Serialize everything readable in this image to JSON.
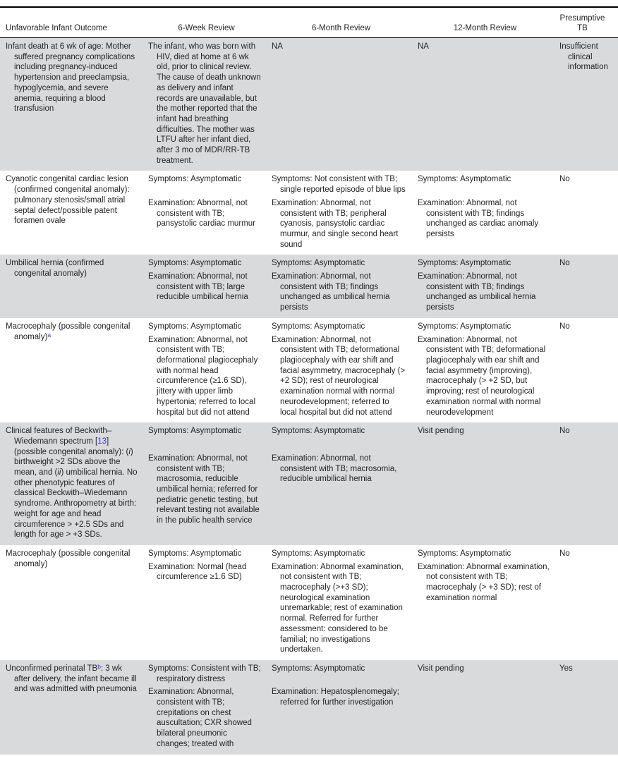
{
  "colors": {
    "row_shade": "#d9dadb",
    "link_blue": "#3a3ac8",
    "rule_black": "#000000"
  },
  "header": {
    "columns": [
      "Unfavorable Infant Outcome",
      "6-Week Review",
      "6-Month Review",
      "12-Month Review",
      "Presumptive TB"
    ]
  },
  "rows": [
    {
      "shaded": true,
      "outcome": [
        {
          "text": "Infant death at 6 wk of age: Mother suffered pregnancy complications including pregnancy-induced hypertension and preeclampsia, hypoglycemia, and severe anemia, requiring a blood transfusion"
        }
      ],
      "six_week": {
        "single": "The infant, who was born with HIV, died at home at 6 wk old, prior to clinical review. The cause of death unknown as delivery and infant records are unavailable, but the mother reported that the infant had breathing difficulties. The mother was LTFU after her infant died, after 3 mo of MDR/RR-TB treatment."
      },
      "six_month": {
        "single": "NA"
      },
      "twelve_month": {
        "single": "NA"
      },
      "presumptive": "Insufficient clinical information"
    },
    {
      "shaded": false,
      "outcome": [
        {
          "text": "Cyanotic congenital cardiac lesion (confirmed congenital anomaly): pulmonary stenosis/small atrial septal defect/possible patent foramen ovale"
        }
      ],
      "six_week": {
        "symptoms": "Symptoms: Asymptomatic",
        "examination": "Examination: Abnormal, not consistent with TB; pansystolic cardiac murmur"
      },
      "six_month": {
        "symptoms": "Symptoms: Not consistent with TB; single reported episode of blue lips",
        "examination": "Examination: Abnormal, not consistent with TB; peripheral cyanosis, pansystolic cardiac murmur, and single second heart sound"
      },
      "twelve_month": {
        "symptoms": "Symptoms: Asymptomatic",
        "examination": "Examination: Abnormal, not consistent with TB; findings unchanged as cardiac anomaly persists"
      },
      "presumptive": "No"
    },
    {
      "shaded": true,
      "outcome": [
        {
          "text": "Umbilical hernia (confirmed congenital anomaly)"
        }
      ],
      "six_week": {
        "symptoms": "Symptoms: Asymptomatic",
        "examination": "Examination: Abnormal, not consistent with TB; large reducible umbilical hernia"
      },
      "six_month": {
        "symptoms": "Symptoms: Asymptomatic",
        "examination": "Examination: Abnormal, not consistent with TB; findings unchanged as umbilical hernia persists"
      },
      "twelve_month": {
        "symptoms": "Symptoms: Asymptomatic",
        "examination": "Examination: Abnormal, not consistent with TB; findings unchanged as umbilical hernia persists"
      },
      "presumptive": "No"
    },
    {
      "shaded": false,
      "outcome": [
        {
          "text": "Macrocephaly (possible congenital anomaly)"
        },
        {
          "sup": "a"
        }
      ],
      "six_week": {
        "symptoms": "Symptoms: Asymptomatic",
        "examination": "Examination: Abnormal, not consistent with TB; deformational plagiocephaly with normal head circumference (≥1.6 SD), jittery with upper limb hypertonia; referred to local hospital but did not attend"
      },
      "six_month": {
        "symptoms": "Symptoms: Asymptomatic",
        "examination": "Examination: Abnormal, not consistent with TB; deformational plagiocephaly with ear shift and facial asymmetry, macrocephaly (> +2 SD); rest of neurological examination normal with normal neurodevelopment; referred to local hospital but did not attend"
      },
      "twelve_month": {
        "symptoms": "Symptoms: Asymptomatic",
        "examination": "Examination: Abnormal, not consistent with TB; deformational plagiocephaly with ear shift and facial asymmetry (improving), macrocephaly (> +2 SD, but improving; rest of neurological examination normal with normal neurodevelopment"
      },
      "presumptive": "No"
    },
    {
      "shaded": true,
      "outcome": [
        {
          "text": "Clinical features of Beckwith–Wiedemann spectrum ["
        },
        {
          "link": "13"
        },
        {
          "text": "] (possible congenital anomaly): ("
        },
        {
          "italic": "i"
        },
        {
          "text": ") birthweight >2 SDs above the mean, and ("
        },
        {
          "italic": "ii"
        },
        {
          "text": ") umbilical hernia. No other phenotypic features of classical Beckwith–Wiedemann syndrome. Anthropometry at birth: weight for age and head circumference > +2.5 SDs and length for age > +3 SDs."
        }
      ],
      "six_week": {
        "symptoms": "Symptoms: Asymptomatic",
        "examination": "Examination: Abnormal, not consistent with TB; macrosomia, reducible umbilical hernia; referred for pediatric genetic testing, but relevant testing not available in the public health service"
      },
      "six_month": {
        "symptoms": "Symptoms: Asymptomatic",
        "examination": "Examination: Abnormal, not consistent with TB; macrosomia, reducible umbilical hernia"
      },
      "twelve_month": {
        "single": "Visit pending"
      },
      "presumptive": "No"
    },
    {
      "shaded": false,
      "outcome": [
        {
          "text": "Macrocephaly (possible congenital anomaly)"
        }
      ],
      "six_week": {
        "symptoms": "Symptoms: Asymptomatic",
        "examination": "Examination: Normal (head circumference ≥1.6 SD)"
      },
      "six_month": {
        "symptoms": "Symptoms: Asymptomatic",
        "examination": "Examination: Abnormal examination, not consistent with TB; macrocephaly (>+3 SD); neurological examination unremarkable; rest of examination normal. Referred for further assessment: considered to be familial; no investigations undertaken."
      },
      "twelve_month": {
        "symptoms": "Symptoms: Asymptomatic",
        "examination": "Examination: Abnormal examination, not consistent with TB; macrocephaly (> +3 SD); rest of examination normal"
      },
      "presumptive": "No"
    },
    {
      "shaded": true,
      "outcome": [
        {
          "text": "Unconfirmed perinatal TB"
        },
        {
          "sup": "b"
        },
        {
          "text": ": 3 wk after delivery, the infant became ill and was admitted with pneumonia"
        }
      ],
      "six_week": {
        "symptoms": "Symptoms: Consistent with TB; respiratory distress",
        "examination": "Examination: Abnormal, consistent with TB; crepitations on chest auscultation; CXR showed bilateral pneumonic changes; treated with"
      },
      "six_month": {
        "symptoms": "Symptoms: Asymptomatic",
        "examination": "Examination: Hepatosplenomegaly; referred for further investigation"
      },
      "twelve_month": {
        "single": "Visit pending"
      },
      "presumptive": "Yes"
    }
  ]
}
